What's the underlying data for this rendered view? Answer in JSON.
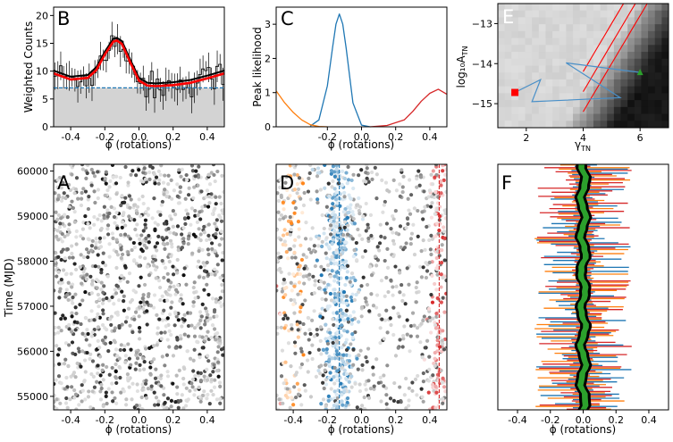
{
  "figure": {
    "panels": {
      "B": {
        "label": "B",
        "ylabel": "Weighted Counts",
        "xlabel": "ϕ (rotations)",
        "xlim": [
          -0.5,
          0.5
        ],
        "ylim": [
          0,
          21.5
        ],
        "xticks": [
          "-0.4",
          "-0.2",
          "0.0",
          "0.2",
          "0.4"
        ],
        "xtick_values": [
          -0.4,
          -0.2,
          0.0,
          0.2,
          0.4
        ],
        "yticks": [
          "0",
          "5",
          "10",
          "15",
          "20"
        ],
        "ytick_values": [
          0,
          5,
          10,
          15,
          20
        ],
        "background_level": 7.0,
        "colors": {
          "background_fill": "#d3d3d3",
          "baseline": "#1f77b4",
          "model": "#ff0000",
          "mean_model": "#000000",
          "histogram": "#000000"
        }
      },
      "C": {
        "label": "C",
        "ylabel": "Peak likelihood",
        "xlabel": "ϕ (rotations)",
        "xlim": [
          -0.5,
          0.5
        ],
        "ylim": [
          0,
          3.5
        ],
        "xticks": [
          "-0.2",
          "0.0",
          "0.2",
          "0.4"
        ],
        "xtick_values": [
          -0.2,
          0.0,
          0.2,
          0.4
        ],
        "yticks": [
          "0",
          "1",
          "2",
          "3"
        ],
        "ytick_values": [
          0,
          1,
          2,
          3
        ],
        "colors": {
          "main_peak": "#1f77b4",
          "left_wing": "#ff7f0e",
          "right_wing": "#d62728"
        }
      },
      "E": {
        "label": "E",
        "ylabel": "log₁₀A",
        "ylabel_sub": "TN",
        "xlabel": "γ",
        "xlabel_sub": "TN",
        "xlim": [
          1,
          7
        ],
        "ylim": [
          -15.6,
          -12.5
        ],
        "xticks": [
          "2",
          "4",
          "6"
        ],
        "xtick_values": [
          2,
          4,
          6
        ],
        "yticks": [
          "−13",
          "−14",
          "−15"
        ],
        "ytick_values": [
          -13,
          -14,
          -15
        ],
        "colors": {
          "contour": "#ff0000",
          "trace": "#4a90c8",
          "start_marker": "#ff0000",
          "end_marker": "#2ca02c"
        }
      },
      "A": {
        "label": "A",
        "ylabel": "Time (MJD)",
        "xlabel": "ϕ (rotations)",
        "xlim": [
          -0.5,
          0.5
        ],
        "ylim": [
          54700,
          60150
        ],
        "xticks": [
          "-0.4",
          "-0.2",
          "0.0",
          "0.2",
          "0.4"
        ],
        "xtick_values": [
          -0.4,
          -0.2,
          0.0,
          0.2,
          0.4
        ],
        "yticks": [
          "55000",
          "56000",
          "57000",
          "58000",
          "59000",
          "60000"
        ],
        "ytick_values": [
          55000,
          56000,
          57000,
          58000,
          59000,
          60000
        ]
      },
      "D": {
        "label": "D",
        "xlabel": "ϕ (rotations)",
        "xlim": [
          -0.5,
          0.5
        ],
        "ylim": [
          54700,
          60150
        ],
        "xticks": [
          "-0.4",
          "-0.2",
          "0.0",
          "0.2",
          "0.4"
        ],
        "xtick_values": [
          -0.4,
          -0.2,
          0.0,
          0.2,
          0.4
        ],
        "peak_phase": -0.13,
        "secondary_phase": 0.455,
        "colors": {
          "main": "#1f77b4",
          "left": "#ff7f0e",
          "right": "#d62728",
          "grey": "#808080"
        }
      },
      "F": {
        "label": "F",
        "xlabel": "ϕ (rotations)",
        "xlim": [
          -0.52,
          0.52
        ],
        "ylim": [
          54700,
          60150
        ],
        "xticks": [
          "-0.4",
          "-0.2",
          "0.0",
          "0.2",
          "0.4"
        ],
        "xtick_values": [
          -0.4,
          -0.2,
          0.0,
          0.2,
          0.4
        ],
        "colors": {
          "band": "#2ca02c",
          "core": "#000000",
          "blue": "#1f77b4",
          "orange": "#ff7f0e",
          "red": "#d62728"
        }
      }
    }
  },
  "chart_data": [
    {
      "panel": "B",
      "type": "line",
      "title": "",
      "xlabel": "ϕ (rotations)",
      "ylabel": "Weighted Counts",
      "xlim": [
        -0.5,
        0.5
      ],
      "ylim": [
        0,
        21.5
      ],
      "series": [
        {
          "kind": "model",
          "x": [
            -0.5,
            -0.4,
            -0.3,
            -0.25,
            -0.2,
            -0.15,
            -0.13,
            -0.1,
            -0.05,
            0.0,
            0.05,
            0.1,
            0.2,
            0.3,
            0.4,
            0.5
          ],
          "y": [
            9.6,
            8.5,
            8.8,
            10.2,
            13.0,
            15.3,
            15.5,
            14.9,
            11.5,
            8.3,
            7.4,
            7.3,
            7.5,
            7.9,
            8.7,
            9.6
          ]
        },
        {
          "kind": "baseline",
          "x": [
            -0.5,
            0.5
          ],
          "y": [
            7.0,
            7.0
          ]
        }
      ]
    },
    {
      "panel": "C",
      "type": "line",
      "title": "",
      "xlabel": "ϕ (rotations)",
      "ylabel": "Peak likelihood",
      "xlim": [
        -0.5,
        0.5
      ],
      "ylim": [
        0,
        3.5
      ],
      "series": [
        {
          "kind": "main_peak",
          "x": [
            -0.3,
            -0.25,
            -0.2,
            -0.17,
            -0.15,
            -0.13,
            -0.11,
            -0.09,
            -0.05,
            0.0,
            0.05
          ],
          "y": [
            0.02,
            0.2,
            1.2,
            2.3,
            3.0,
            3.3,
            3.0,
            2.3,
            0.7,
            0.05,
            0.0
          ]
        },
        {
          "kind": "left_wing",
          "x": [
            -0.5,
            -0.45,
            -0.4,
            -0.35,
            -0.3,
            -0.25,
            -0.2
          ],
          "y": [
            1.05,
            0.7,
            0.42,
            0.2,
            0.06,
            0.01,
            0.0
          ]
        },
        {
          "kind": "right_wing",
          "x": [
            0.05,
            0.15,
            0.25,
            0.3,
            0.35,
            0.4,
            0.45,
            0.5
          ],
          "y": [
            0.0,
            0.04,
            0.2,
            0.45,
            0.75,
            0.98,
            1.1,
            0.95
          ]
        }
      ]
    },
    {
      "panel": "E",
      "type": "heatmap",
      "title": "",
      "xlabel": "γTN",
      "ylabel": "log10 ATN",
      "xlim": [
        1,
        7
      ],
      "ylim": [
        -15.6,
        -12.5
      ],
      "trace": {
        "x": [
          1.6,
          2.5,
          2.2,
          5.3,
          3.4,
          6.0
        ],
        "y": [
          -14.72,
          -14.4,
          -14.95,
          -14.85,
          -13.98,
          -14.22
        ]
      },
      "markers": [
        {
          "kind": "start",
          "x": 1.6,
          "y": -14.72
        },
        {
          "kind": "end",
          "x": 6.0,
          "y": -14.22
        }
      ]
    },
    {
      "panel": "A",
      "type": "scatter",
      "title": "",
      "xlabel": "ϕ (rotations)",
      "ylabel": "Time (MJD)",
      "xlim": [
        -0.5,
        0.5
      ],
      "ylim": [
        54700,
        60150
      ]
    },
    {
      "panel": "D",
      "type": "scatter",
      "title": "",
      "xlabel": "ϕ (rotations)",
      "xlim": [
        -0.5,
        0.5
      ],
      "ylim": [
        54700,
        60150
      ],
      "vlines": [
        -0.13,
        0.455
      ]
    },
    {
      "panel": "F",
      "type": "line",
      "title": "",
      "xlabel": "ϕ (rotations)",
      "xlim": [
        -0.52,
        0.52
      ],
      "ylim": [
        54700,
        60150
      ]
    }
  ]
}
